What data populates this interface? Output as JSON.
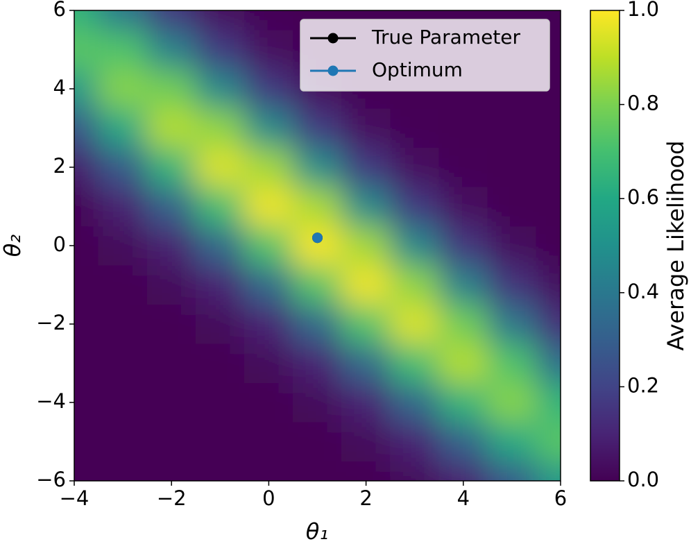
{
  "chart_data": {
    "type": "heatmap",
    "xlabel": "θ₁",
    "ylabel": "θ₂",
    "x": [
      -4,
      -3,
      -2,
      -1,
      0,
      1,
      2,
      3,
      4,
      5,
      6
    ],
    "y": [
      -6,
      -5,
      -4,
      -3,
      -2,
      -1,
      0,
      1,
      2,
      3,
      4,
      5,
      6
    ],
    "z": [
      [
        0,
        0,
        0,
        0,
        0,
        0,
        0,
        0.02,
        0.09,
        0.28,
        0.54
      ],
      [
        0,
        0,
        0,
        0,
        0,
        0,
        0.02,
        0.1,
        0.31,
        0.6,
        0.74
      ],
      [
        0,
        0,
        0,
        0,
        0,
        0.02,
        0.1,
        0.33,
        0.65,
        0.82,
        0.65
      ],
      [
        0,
        0,
        0,
        0,
        0.02,
        0.1,
        0.34,
        0.69,
        0.89,
        0.72,
        0.36
      ],
      [
        0,
        0,
        0,
        0.02,
        0.1,
        0.34,
        0.72,
        0.95,
        0.78,
        0.4,
        0.13
      ],
      [
        0,
        0,
        0.02,
        0.1,
        0.34,
        0.73,
        0.98,
        0.83,
        0.44,
        0.15,
        0.03
      ],
      [
        0,
        0.02,
        0.09,
        0.33,
        0.72,
        0.99,
        0.86,
        0.47,
        0.16,
        0.03,
        0
      ],
      [
        0.01,
        0.09,
        0.31,
        0.69,
        0.98,
        0.87,
        0.48,
        0.17,
        0.04,
        0,
        0
      ],
      [
        0.08,
        0.28,
        0.65,
        0.95,
        0.86,
        0.49,
        0.17,
        0.04,
        0.01,
        0,
        0
      ],
      [
        0.26,
        0.6,
        0.89,
        0.83,
        0.48,
        0.18,
        0.04,
        0.01,
        0,
        0,
        0
      ],
      [
        0.54,
        0.82,
        0.78,
        0.47,
        0.17,
        0.04,
        0.01,
        0,
        0,
        0,
        0
      ],
      [
        0.74,
        0.72,
        0.44,
        0.17,
        0.04,
        0.01,
        0,
        0,
        0,
        0,
        0
      ],
      [
        0.65,
        0.4,
        0.16,
        0.04,
        0.01,
        0,
        0,
        0,
        0,
        0,
        0
      ]
    ],
    "colormap": "viridis",
    "clim": [
      0,
      1
    ],
    "colorbar_label": "Average Likelihood",
    "colorbar_ticks": [
      {
        "value": 0,
        "label": "0.0"
      },
      0.2,
      0.4,
      0.6,
      0.8,
      {
        "value": 1,
        "label": "1.0"
      }
    ],
    "xlim": [
      -4,
      6
    ],
    "xticks": [
      {
        "value": -4,
        "label": "−4"
      },
      {
        "value": -2,
        "label": "−2"
      },
      0,
      2,
      4,
      6
    ],
    "ylim": [
      -6,
      6
    ],
    "yticks": [
      {
        "value": -6,
        "label": "−6"
      },
      {
        "value": -4,
        "label": "−4"
      },
      {
        "value": -2,
        "label": "−2"
      },
      0,
      2,
      4,
      6
    ],
    "series": [
      {
        "name": "True Parameter",
        "color": "#000000",
        "x": [
          1
        ],
        "y": [
          0.2
        ]
      },
      {
        "name": "Optimum",
        "color": "#1f77b4",
        "x": [
          1
        ],
        "y": [
          0.2
        ]
      }
    ],
    "legend": "upper right"
  }
}
